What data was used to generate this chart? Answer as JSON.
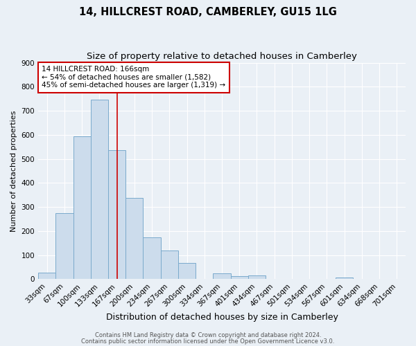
{
  "title": "14, HILLCREST ROAD, CAMBERLEY, GU15 1LG",
  "subtitle": "Size of property relative to detached houses in Camberley",
  "xlabel": "Distribution of detached houses by size in Camberley",
  "ylabel": "Number of detached properties",
  "bar_labels": [
    "33sqm",
    "67sqm",
    "100sqm",
    "133sqm",
    "167sqm",
    "200sqm",
    "234sqm",
    "267sqm",
    "300sqm",
    "334sqm",
    "367sqm",
    "401sqm",
    "434sqm",
    "467sqm",
    "501sqm",
    "534sqm",
    "567sqm",
    "601sqm",
    "634sqm",
    "668sqm",
    "701sqm"
  ],
  "bar_heights": [
    27,
    275,
    593,
    745,
    535,
    338,
    175,
    120,
    68,
    0,
    25,
    13,
    15,
    0,
    0,
    0,
    0,
    8,
    0,
    0,
    0
  ],
  "bar_color": "#ccdcec",
  "bar_edgecolor": "#7aaacc",
  "red_line_x": 4,
  "annotation_text": "14 HILLCREST ROAD: 166sqm\n← 54% of detached houses are smaller (1,582)\n45% of semi-detached houses are larger (1,319) →",
  "annotation_box_facecolor": "#ffffff",
  "annotation_box_edgecolor": "#cc0000",
  "ylim": [
    0,
    900
  ],
  "yticks": [
    0,
    100,
    200,
    300,
    400,
    500,
    600,
    700,
    800,
    900
  ],
  "footer1": "Contains HM Land Registry data © Crown copyright and database right 2024.",
  "footer2": "Contains public sector information licensed under the Open Government Licence v3.0.",
  "background_color": "#eaf0f6",
  "grid_color": "#ffffff",
  "title_fontsize": 10.5,
  "subtitle_fontsize": 9.5,
  "ylabel_fontsize": 8,
  "xlabel_fontsize": 9,
  "tick_fontsize": 7.5,
  "footer_fontsize": 6
}
